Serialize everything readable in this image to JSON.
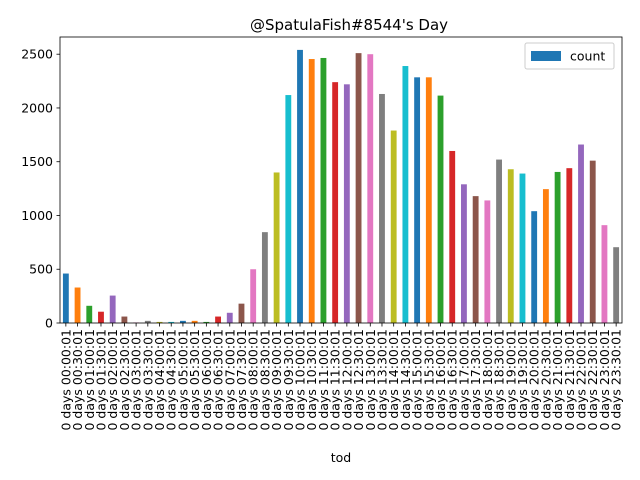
{
  "chart_data": {
    "type": "bar",
    "title": "@SpatulaFish#8544's Day",
    "xlabel": "tod",
    "ylabel": "",
    "ylim": [
      0,
      2660
    ],
    "yticks": [
      0,
      500,
      1000,
      1500,
      2000,
      2500
    ],
    "legend": {
      "position": "top-right",
      "entries": [
        "count"
      ]
    },
    "grid": false,
    "colors": [
      "#1f77b4",
      "#ff7f0e",
      "#2ca02c",
      "#d62728",
      "#9467bd",
      "#8c564b",
      "#e377c2",
      "#7f7f7f",
      "#bcbd22",
      "#17becf"
    ],
    "categories": [
      "0 days 00:00:01",
      "0 days 00:30:01",
      "0 days 01:00:01",
      "0 days 01:30:01",
      "0 days 02:00:01",
      "0 days 02:30:01",
      "0 days 03:00:01",
      "0 days 03:30:01",
      "0 days 04:00:01",
      "0 days 04:30:01",
      "0 days 05:00:01",
      "0 days 05:30:01",
      "0 days 06:00:01",
      "0 days 06:30:01",
      "0 days 07:00:01",
      "0 days 07:30:01",
      "0 days 08:00:01",
      "0 days 08:30:01",
      "0 days 09:00:01",
      "0 days 09:30:01",
      "0 days 10:00:01",
      "0 days 10:30:01",
      "0 days 11:00:01",
      "0 days 11:30:01",
      "0 days 12:00:01",
      "0 days 12:30:01",
      "0 days 13:00:01",
      "0 days 13:30:01",
      "0 days 14:00:01",
      "0 days 14:30:01",
      "0 days 15:00:01",
      "0 days 15:30:01",
      "0 days 16:00:01",
      "0 days 16:30:01",
      "0 days 17:00:01",
      "0 days 17:30:01",
      "0 days 18:00:01",
      "0 days 18:30:01",
      "0 days 19:00:01",
      "0 days 19:30:01",
      "0 days 20:00:01",
      "0 days 20:30:01",
      "0 days 21:00:01",
      "0 days 21:30:01",
      "0 days 22:00:01",
      "0 days 22:30:01",
      "0 days 23:00:01",
      "0 days 23:30:01"
    ],
    "series": [
      {
        "name": "count",
        "values": [
          460,
          330,
          160,
          105,
          255,
          60,
          5,
          20,
          10,
          10,
          20,
          20,
          10,
          60,
          95,
          180,
          500,
          845,
          1400,
          2120,
          2540,
          2455,
          2465,
          2240,
          2220,
          2510,
          2500,
          2130,
          1790,
          2390,
          2285,
          2285,
          2115,
          1600,
          1290,
          1180,
          1140,
          1520,
          1430,
          1390,
          1040,
          1245,
          1405,
          1440,
          1660,
          1510,
          910,
          705
        ]
      }
    ]
  }
}
